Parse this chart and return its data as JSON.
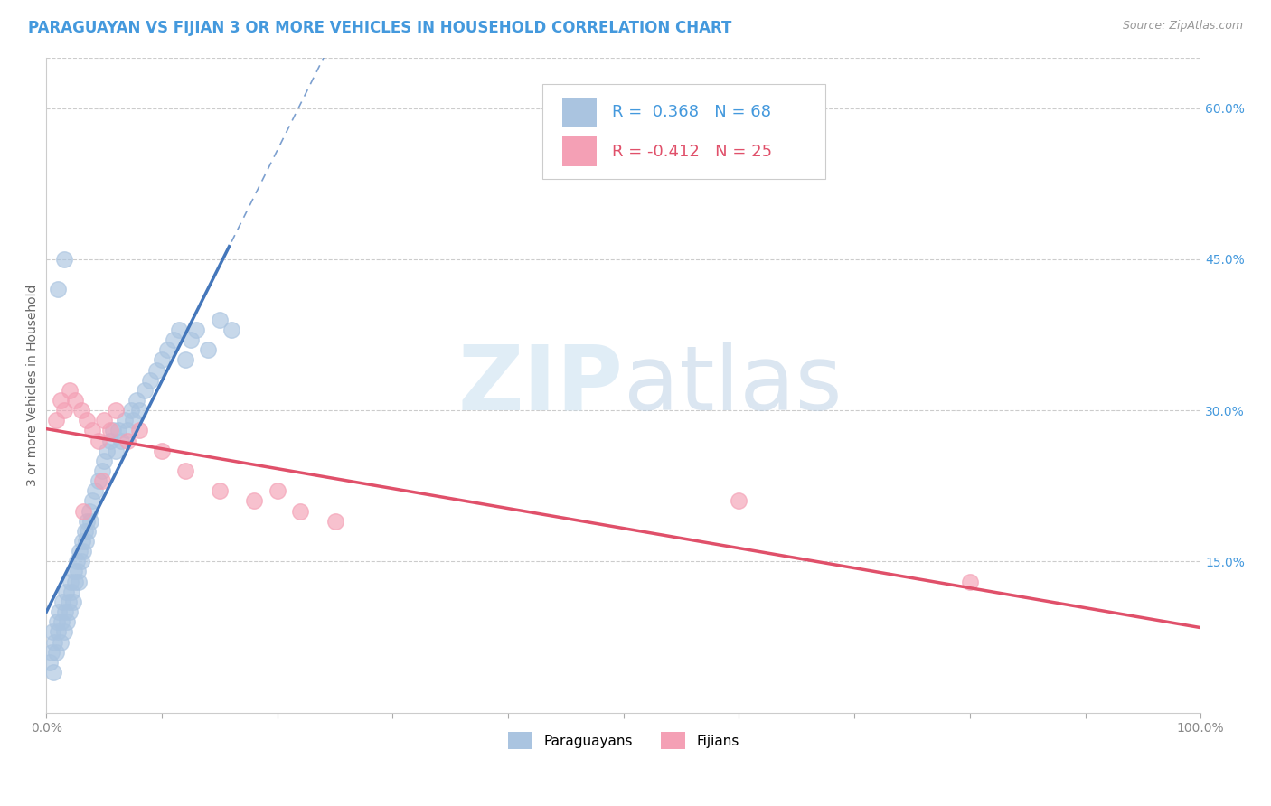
{
  "title": "PARAGUAYAN VS FIJIAN 3 OR MORE VEHICLES IN HOUSEHOLD CORRELATION CHART",
  "source_text": "Source: ZipAtlas.com",
  "ylabel": "3 or more Vehicles in Household",
  "xlim": [
    0.0,
    100.0
  ],
  "ylim": [
    0.0,
    65.0
  ],
  "yticks_right": [
    15.0,
    30.0,
    45.0,
    60.0
  ],
  "grid_color": "#cccccc",
  "paraguayan_color": "#aac4e0",
  "fijian_color": "#f4a0b5",
  "paraguayan_line_color": "#4477bb",
  "fijian_line_color": "#e0506a",
  "R_paraguayan": 0.368,
  "N_paraguayan": 68,
  "R_fijian": -0.412,
  "N_fijian": 25,
  "watermark_zip": "ZIP",
  "watermark_atlas": "atlas",
  "title_color": "#4499dd",
  "source_color": "#999999",
  "tick_color_right": "#4499dd",
  "paraguayan_x": [
    0.3,
    0.4,
    0.5,
    0.6,
    0.7,
    0.8,
    0.9,
    1.0,
    1.1,
    1.2,
    1.3,
    1.4,
    1.5,
    1.6,
    1.7,
    1.8,
    1.9,
    2.0,
    2.1,
    2.2,
    2.3,
    2.4,
    2.5,
    2.6,
    2.7,
    2.8,
    2.9,
    3.0,
    3.1,
    3.2,
    3.3,
    3.4,
    3.5,
    3.6,
    3.7,
    3.8,
    4.0,
    4.2,
    4.5,
    4.8,
    5.0,
    5.2,
    5.5,
    5.8,
    6.0,
    6.2,
    6.5,
    6.8,
    7.0,
    7.3,
    7.5,
    7.8,
    8.0,
    8.5,
    9.0,
    9.5,
    10.0,
    10.5,
    11.0,
    11.5,
    12.0,
    12.5,
    13.0,
    14.0,
    15.0,
    16.0,
    1.0,
    1.5
  ],
  "paraguayan_y": [
    5.0,
    6.0,
    8.0,
    4.0,
    7.0,
    6.0,
    9.0,
    8.0,
    10.0,
    7.0,
    9.0,
    11.0,
    8.0,
    10.0,
    12.0,
    9.0,
    11.0,
    10.0,
    13.0,
    12.0,
    11.0,
    14.0,
    13.0,
    15.0,
    14.0,
    13.0,
    16.0,
    15.0,
    17.0,
    16.0,
    18.0,
    17.0,
    19.0,
    18.0,
    20.0,
    19.0,
    21.0,
    22.0,
    23.0,
    24.0,
    25.0,
    26.0,
    27.0,
    28.0,
    26.0,
    28.0,
    27.0,
    29.0,
    28.0,
    30.0,
    29.0,
    31.0,
    30.0,
    32.0,
    33.0,
    34.0,
    35.0,
    36.0,
    37.0,
    38.0,
    35.0,
    37.0,
    38.0,
    36.0,
    39.0,
    38.0,
    42.0,
    45.0
  ],
  "fijian_x": [
    0.8,
    1.2,
    1.5,
    2.0,
    2.5,
    3.0,
    3.5,
    4.0,
    4.5,
    5.0,
    5.5,
    6.0,
    7.0,
    8.0,
    10.0,
    12.0,
    15.0,
    18.0,
    20.0,
    22.0,
    25.0,
    60.0,
    80.0,
    3.2,
    4.8
  ],
  "fijian_y": [
    29.0,
    31.0,
    30.0,
    32.0,
    31.0,
    30.0,
    29.0,
    28.0,
    27.0,
    29.0,
    28.0,
    30.0,
    27.0,
    28.0,
    26.0,
    24.0,
    22.0,
    21.0,
    22.0,
    20.0,
    19.0,
    21.0,
    13.0,
    20.0,
    23.0
  ],
  "title_fontsize": 12,
  "axis_label_fontsize": 10,
  "tick_fontsize": 10,
  "legend_fontsize": 13
}
